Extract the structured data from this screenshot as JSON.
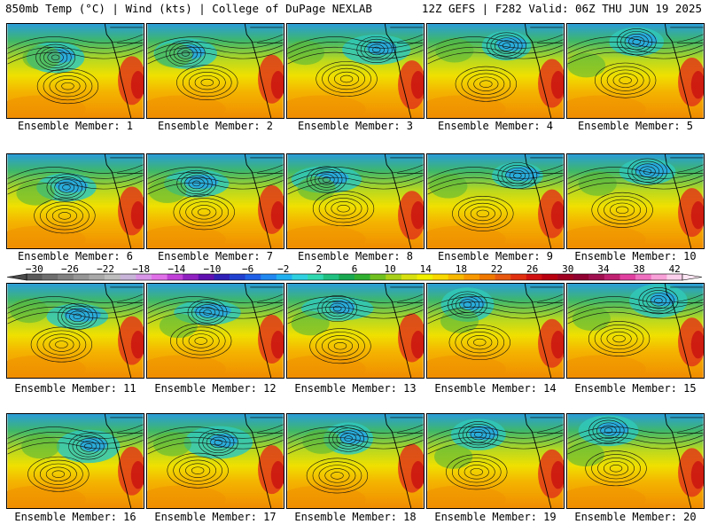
{
  "header": {
    "left": "850mb Temp (°C) | Wind (kts) | College of DuPage NEXLAB",
    "right": "12Z GEFS | F282 Valid: 06Z THU JUN 19 2025"
  },
  "panels": [
    {
      "label": "Ensemble Member: 1"
    },
    {
      "label": "Ensemble Member: 2"
    },
    {
      "label": "Ensemble Member: 3"
    },
    {
      "label": "Ensemble Member: 4"
    },
    {
      "label": "Ensemble Member: 5"
    },
    {
      "label": "Ensemble Member: 6"
    },
    {
      "label": "Ensemble Member: 7"
    },
    {
      "label": "Ensemble Member: 8"
    },
    {
      "label": "Ensemble Member: 9"
    },
    {
      "label": "Ensemble Member: 10"
    },
    {
      "label": "Ensemble Member: 11"
    },
    {
      "label": "Ensemble Member: 12"
    },
    {
      "label": "Ensemble Member: 13"
    },
    {
      "label": "Ensemble Member: 14"
    },
    {
      "label": "Ensemble Member: 15"
    },
    {
      "label": "Ensemble Member: 16"
    },
    {
      "label": "Ensemble Member: 17"
    },
    {
      "label": "Ensemble Member: 18"
    },
    {
      "label": "Ensemble Member: 19"
    },
    {
      "label": "Ensemble Member: 20"
    }
  ],
  "colorbar": {
    "tick_labels": [
      "−30",
      "−26",
      "−22",
      "−18",
      "−14",
      "−10",
      "−6",
      "−2",
      "2",
      "6",
      "10",
      "14",
      "18",
      "22",
      "26",
      "30",
      "34",
      "38",
      "42"
    ],
    "colors": [
      "#5a5a5a",
      "#6e6e6e",
      "#828282",
      "#969696",
      "#a9a9a9",
      "#bdbdbd",
      "#c8b4d8",
      "#d896e8",
      "#e070e8",
      "#c040d8",
      "#9020c0",
      "#6010b0",
      "#3020b8",
      "#2040d0",
      "#2060e8",
      "#2088f0",
      "#20b0f0",
      "#30d0e0",
      "#30d8b0",
      "#20c080",
      "#18a850",
      "#30b030",
      "#70c020",
      "#a8d018",
      "#d8e010",
      "#f0f000",
      "#f8d800",
      "#f8b800",
      "#f89800",
      "#f07800",
      "#e85810",
      "#e03010",
      "#d01010",
      "#b80010",
      "#a00020",
      "#900030",
      "#a01050",
      "#c02070",
      "#e040a0",
      "#f070c0",
      "#f8a0d8",
      "#fcd0ec"
    ]
  }
}
